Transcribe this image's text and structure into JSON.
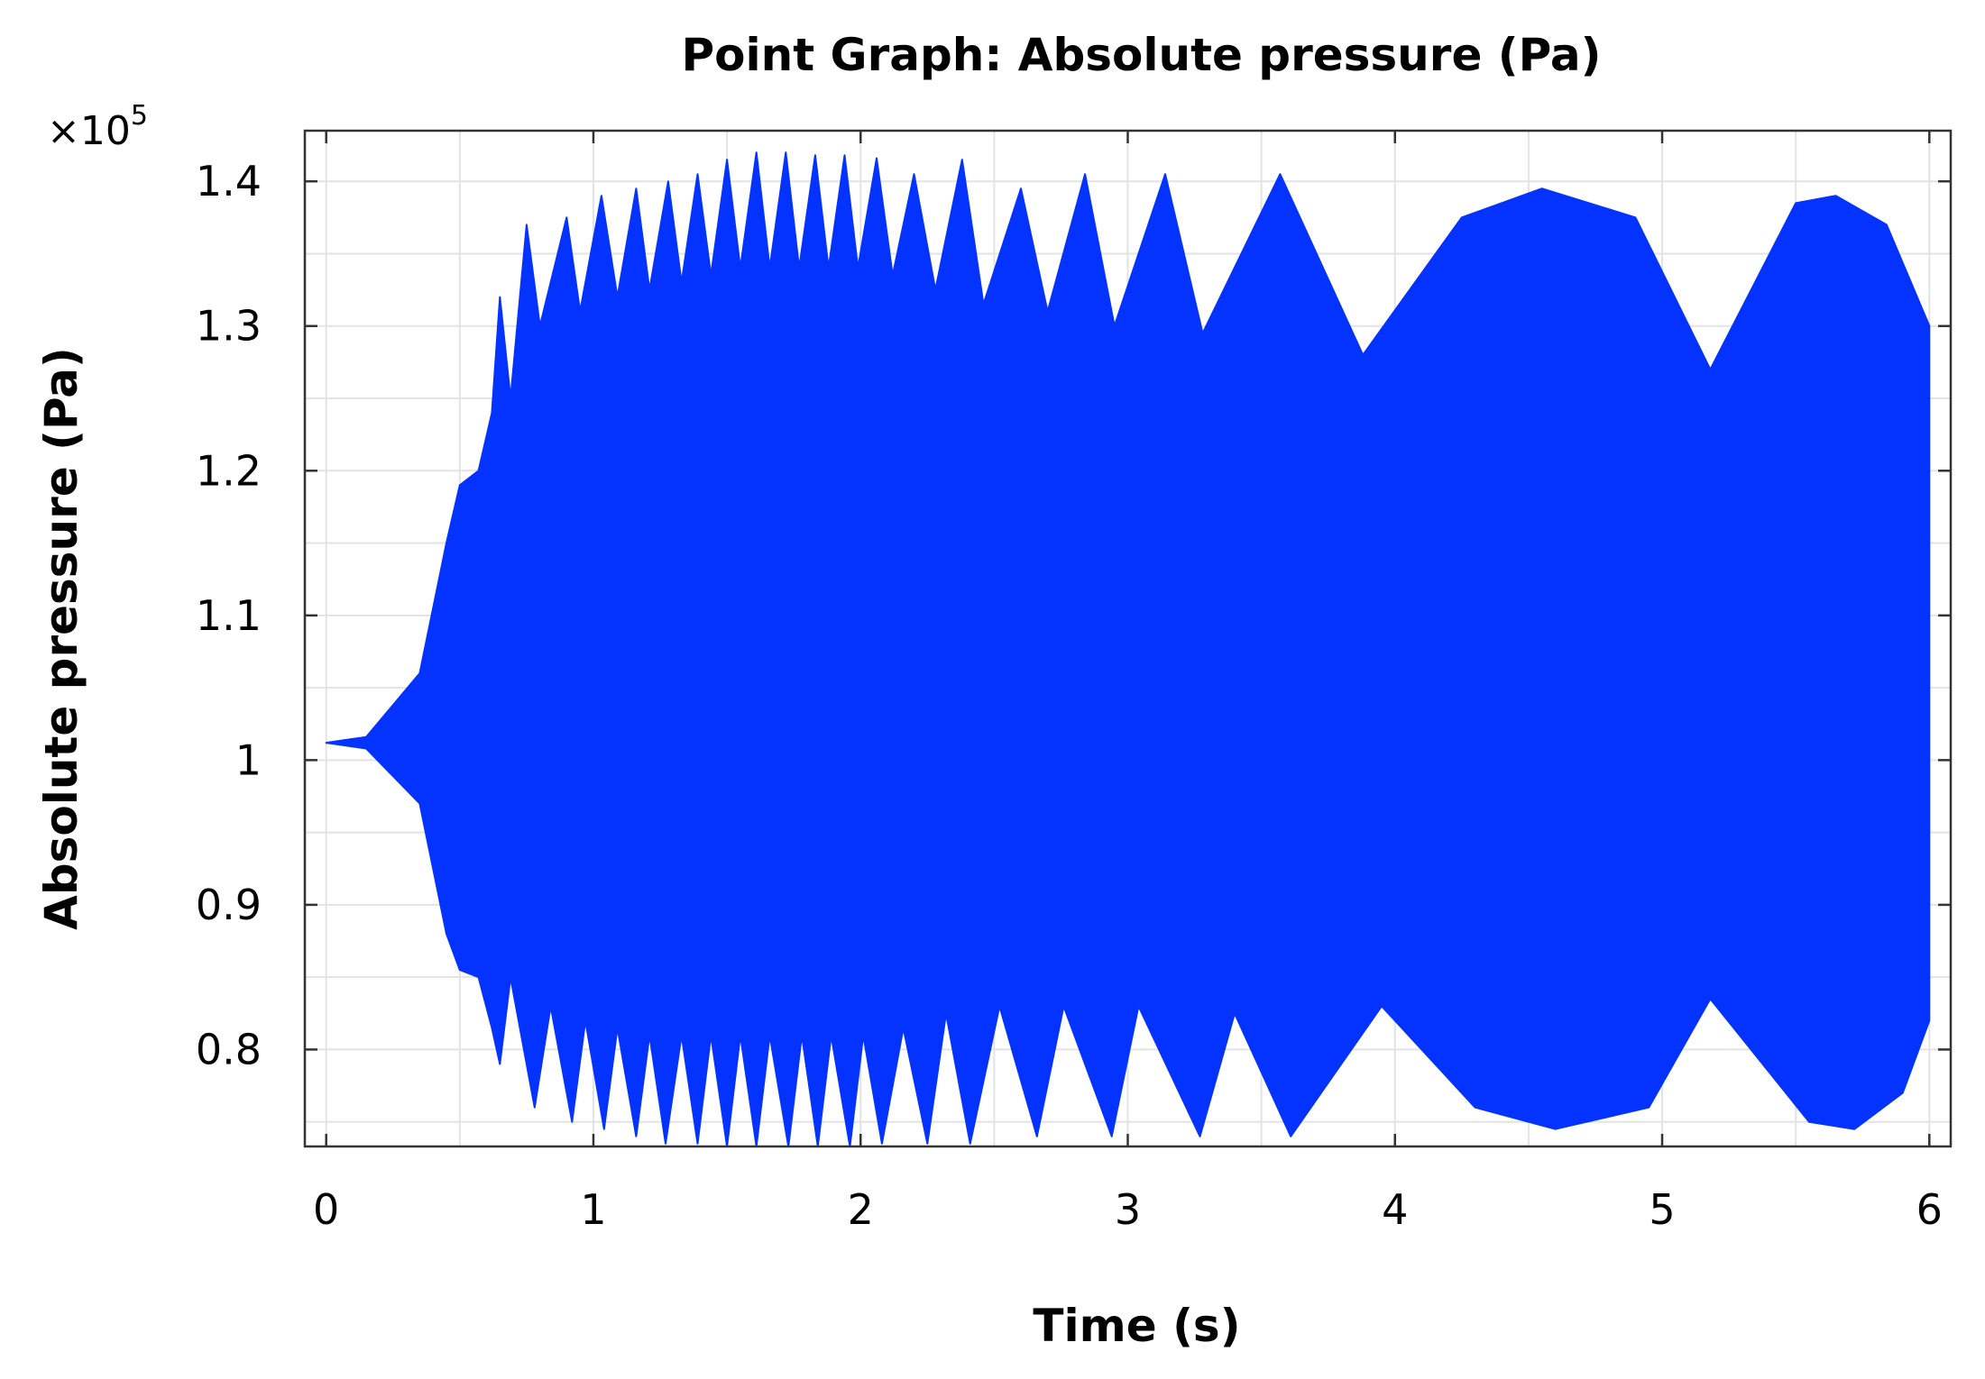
{
  "chart_data": {
    "type": "area",
    "title": "Point Graph: Absolute pressure (Pa)",
    "xlabel": "Time (s)",
    "ylabel": "Absolute pressure (Pa)",
    "y_multiplier_label": "×10",
    "y_multiplier_exponent": "5",
    "xlim": [
      -0.08,
      6.08
    ],
    "ylim": [
      0.733,
      1.435
    ],
    "x_ticks": [
      0,
      1,
      2,
      3,
      4,
      5,
      6
    ],
    "x_tick_labels": [
      "0",
      "1",
      "2",
      "3",
      "4",
      "5",
      "6"
    ],
    "y_ticks": [
      0.8,
      0.9,
      1.0,
      1.1,
      1.2,
      1.3,
      1.4
    ],
    "y_tick_labels": [
      "0.8",
      "0.9",
      "1",
      "1.1",
      "1.2",
      "1.3",
      "1.4"
    ],
    "grid": true,
    "fill_color": "#0433ff",
    "series": [
      {
        "upper_envelope": [
          [
            0.0,
            1.012
          ],
          [
            0.15,
            1.016
          ],
          [
            0.35,
            1.06
          ],
          [
            0.45,
            1.15
          ],
          [
            0.5,
            1.19
          ],
          [
            0.57,
            1.2
          ],
          [
            0.62,
            1.24
          ],
          [
            0.65,
            1.32
          ],
          [
            0.69,
            1.25
          ],
          [
            0.75,
            1.37
          ],
          [
            0.8,
            1.3
          ],
          [
            0.9,
            1.375
          ],
          [
            0.95,
            1.31
          ],
          [
            1.03,
            1.39
          ],
          [
            1.09,
            1.32
          ],
          [
            1.16,
            1.395
          ],
          [
            1.21,
            1.325
          ],
          [
            1.28,
            1.4
          ],
          [
            1.33,
            1.33
          ],
          [
            1.39,
            1.405
          ],
          [
            1.44,
            1.335
          ],
          [
            1.5,
            1.415
          ],
          [
            1.55,
            1.34
          ],
          [
            1.61,
            1.42
          ],
          [
            1.66,
            1.34
          ],
          [
            1.72,
            1.42
          ],
          [
            1.77,
            1.34
          ],
          [
            1.83,
            1.418
          ],
          [
            1.88,
            1.34
          ],
          [
            1.94,
            1.418
          ],
          [
            1.99,
            1.34
          ],
          [
            2.06,
            1.416
          ],
          [
            2.12,
            1.335
          ],
          [
            2.2,
            1.405
          ],
          [
            2.28,
            1.325
          ],
          [
            2.38,
            1.415
          ],
          [
            2.46,
            1.315
          ],
          [
            2.6,
            1.395
          ],
          [
            2.7,
            1.31
          ],
          [
            2.84,
            1.405
          ],
          [
            2.95,
            1.3
          ],
          [
            3.14,
            1.405
          ],
          [
            3.28,
            1.295
          ],
          [
            3.57,
            1.405
          ],
          [
            3.88,
            1.28
          ],
          [
            4.25,
            1.375
          ],
          [
            4.55,
            1.395
          ],
          [
            4.9,
            1.375
          ],
          [
            5.18,
            1.27
          ],
          [
            5.5,
            1.385
          ],
          [
            5.65,
            1.39
          ],
          [
            5.84,
            1.37
          ],
          [
            6.0,
            1.3
          ]
        ],
        "lower_envelope": [
          [
            0.0,
            1.012
          ],
          [
            0.15,
            1.008
          ],
          [
            0.35,
            0.97
          ],
          [
            0.45,
            0.88
          ],
          [
            0.5,
            0.855
          ],
          [
            0.57,
            0.85
          ],
          [
            0.62,
            0.815
          ],
          [
            0.65,
            0.79
          ],
          [
            0.69,
            0.85
          ],
          [
            0.78,
            0.76
          ],
          [
            0.84,
            0.83
          ],
          [
            0.92,
            0.75
          ],
          [
            0.97,
            0.82
          ],
          [
            1.04,
            0.745
          ],
          [
            1.09,
            0.815
          ],
          [
            1.16,
            0.74
          ],
          [
            1.21,
            0.81
          ],
          [
            1.27,
            0.735
          ],
          [
            1.33,
            0.81
          ],
          [
            1.39,
            0.735
          ],
          [
            1.44,
            0.81
          ],
          [
            1.5,
            0.733
          ],
          [
            1.55,
            0.81
          ],
          [
            1.61,
            0.733
          ],
          [
            1.66,
            0.81
          ],
          [
            1.73,
            0.733
          ],
          [
            1.78,
            0.81
          ],
          [
            1.84,
            0.733
          ],
          [
            1.89,
            0.81
          ],
          [
            1.96,
            0.733
          ],
          [
            2.01,
            0.81
          ],
          [
            2.08,
            0.735
          ],
          [
            2.16,
            0.815
          ],
          [
            2.25,
            0.735
          ],
          [
            2.32,
            0.825
          ],
          [
            2.41,
            0.735
          ],
          [
            2.52,
            0.83
          ],
          [
            2.66,
            0.74
          ],
          [
            2.76,
            0.83
          ],
          [
            2.94,
            0.74
          ],
          [
            3.04,
            0.83
          ],
          [
            3.27,
            0.74
          ],
          [
            3.4,
            0.825
          ],
          [
            3.61,
            0.74
          ],
          [
            3.95,
            0.83
          ],
          [
            4.3,
            0.76
          ],
          [
            4.6,
            0.745
          ],
          [
            4.95,
            0.76
          ],
          [
            5.18,
            0.835
          ],
          [
            5.55,
            0.75
          ],
          [
            5.72,
            0.745
          ],
          [
            5.9,
            0.77
          ],
          [
            6.0,
            0.82
          ]
        ]
      }
    ]
  }
}
